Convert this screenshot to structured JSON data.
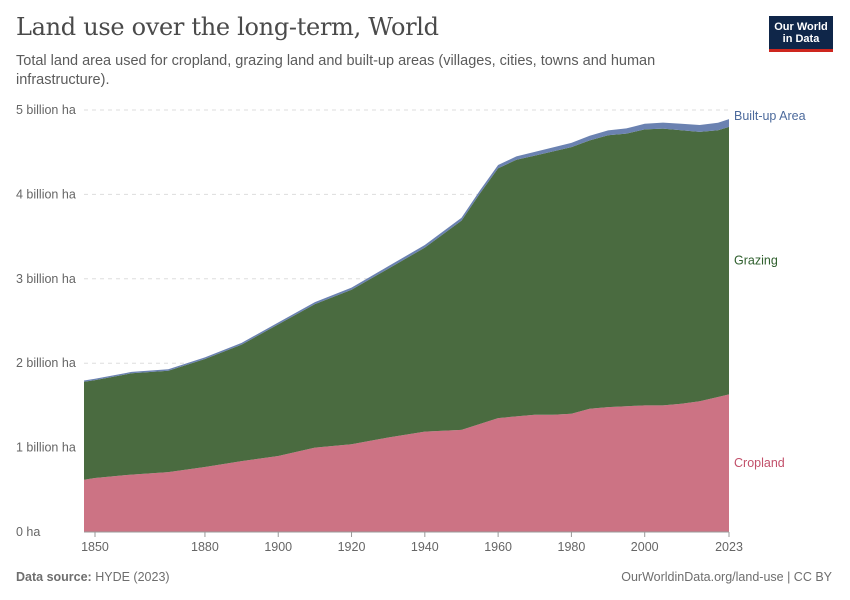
{
  "title": "Land use over the long-term, World",
  "subtitle": "Total land area used for cropland, grazing land and built-up areas (villages, cities, towns and human infrastructure).",
  "logo": {
    "line1": "Our World",
    "line2": "in Data"
  },
  "footer": {
    "source_label": "Data source:",
    "source_value": "HYDE (2023)",
    "attribution": "OurWorldinData.org/land-use | CC BY"
  },
  "colors": {
    "cropland": "#cc7384",
    "grazing": "#4a6b40",
    "built_up": "#6b82b1",
    "cropland_label": "#c2506a",
    "grazing_label": "#2e5e2c",
    "built_up_label": "#4c6a9c",
    "grid": "#dddddd",
    "axis_text": "#666666"
  },
  "chart_data": {
    "type": "area",
    "stacked": true,
    "xlim": [
      1847,
      2023
    ],
    "ylim": [
      0,
      5000000000
    ],
    "x_ticks": [
      {
        "value": 1850,
        "label": "1850"
      },
      {
        "value": 1880,
        "label": "1880"
      },
      {
        "value": 1900,
        "label": "1900"
      },
      {
        "value": 1920,
        "label": "1920"
      },
      {
        "value": 1940,
        "label": "1940"
      },
      {
        "value": 1960,
        "label": "1960"
      },
      {
        "value": 1980,
        "label": "1980"
      },
      {
        "value": 2000,
        "label": "2000"
      },
      {
        "value": 2023,
        "label": "2023"
      }
    ],
    "y_ticks": [
      {
        "value": 0,
        "label": "0 ha"
      },
      {
        "value": 1000000000,
        "label": "1 billion ha"
      },
      {
        "value": 2000000000,
        "label": "2 billion ha"
      },
      {
        "value": 3000000000,
        "label": "3 billion ha"
      },
      {
        "value": 4000000000,
        "label": "4 billion ha"
      },
      {
        "value": 5000000000,
        "label": "5 billion ha"
      }
    ],
    "grid": true,
    "legend": "inline-right",
    "x": [
      1847,
      1850,
      1860,
      1870,
      1880,
      1890,
      1900,
      1910,
      1920,
      1930,
      1940,
      1950,
      1955,
      1960,
      1965,
      1970,
      1975,
      1980,
      1985,
      1990,
      1995,
      2000,
      2005,
      2010,
      2015,
      2020,
      2023
    ],
    "series": [
      {
        "name": "Cropland",
        "values": [
          620000000,
          640000000,
          680000000,
          710000000,
          770000000,
          840000000,
          900000000,
          1000000000,
          1040000000,
          1120000000,
          1190000000,
          1210000000,
          1280000000,
          1350000000,
          1370000000,
          1390000000,
          1390000000,
          1400000000,
          1460000000,
          1480000000,
          1490000000,
          1500000000,
          1500000000,
          1520000000,
          1550000000,
          1600000000,
          1630000000
        ]
      },
      {
        "name": "Grazing",
        "values": [
          1160000000,
          1160000000,
          1200000000,
          1200000000,
          1280000000,
          1380000000,
          1560000000,
          1700000000,
          1830000000,
          2000000000,
          2180000000,
          2480000000,
          2730000000,
          2960000000,
          3040000000,
          3070000000,
          3120000000,
          3160000000,
          3180000000,
          3220000000,
          3230000000,
          3270000000,
          3280000000,
          3240000000,
          3190000000,
          3160000000,
          3170000000
        ]
      },
      {
        "name": "Built-up Area",
        "values": [
          15000000,
          16000000,
          17000000,
          18000000,
          19000000,
          20000000,
          22000000,
          24000000,
          26000000,
          28000000,
          30000000,
          33000000,
          35000000,
          38000000,
          40000000,
          44000000,
          47000000,
          50000000,
          54000000,
          58000000,
          62000000,
          66000000,
          71000000,
          76000000,
          82000000,
          88000000,
          92000000
        ]
      }
    ]
  }
}
